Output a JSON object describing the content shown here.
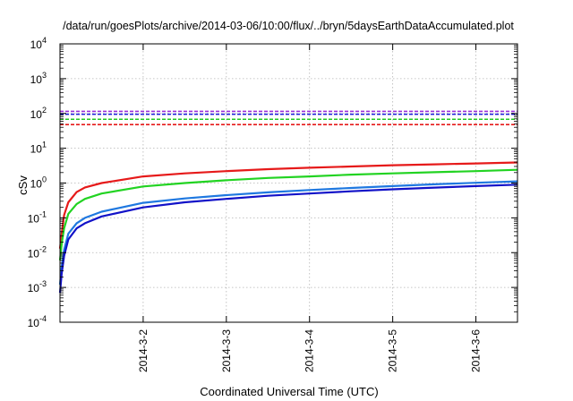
{
  "chart_data": {
    "type": "line",
    "title": "/data/run/goesPlots/archive/2014-03-06/10:00/flux/../bryn/5daysEarthDataAccumulated.plot",
    "xlabel": "Coordinated Universal Time (UTC)",
    "ylabel": "cSv",
    "yscale": "log",
    "ylim": [
      0.0001,
      10000
    ],
    "xlim": [
      0,
      5.5
    ],
    "grid": true,
    "legend": "none",
    "y_ticks": [
      {
        "value": 0.0001,
        "base": "10",
        "exp": "-4"
      },
      {
        "value": 0.001,
        "base": "10",
        "exp": "-3"
      },
      {
        "value": 0.01,
        "base": "10",
        "exp": "-2"
      },
      {
        "value": 0.1,
        "base": "10",
        "exp": "-1"
      },
      {
        "value": 1,
        "base": "10",
        "exp": "0"
      },
      {
        "value": 10,
        "base": "10",
        "exp": "1"
      },
      {
        "value": 100,
        "base": "10",
        "exp": "2"
      },
      {
        "value": 1000,
        "base": "10",
        "exp": "3"
      },
      {
        "value": 10000,
        "base": "10",
        "exp": "4"
      }
    ],
    "x_ticks": [
      {
        "value": 1,
        "label": "2014-3-2"
      },
      {
        "value": 2,
        "label": "2014-3-3"
      },
      {
        "value": 3,
        "label": "2014-3-4"
      },
      {
        "value": 4,
        "label": "2014-3-5"
      },
      {
        "value": 5,
        "label": "2014-3-6"
      }
    ],
    "thresholds": [
      {
        "value": 115,
        "color": "#9b30d9"
      },
      {
        "value": 95,
        "color": "#1a1ad8"
      },
      {
        "value": 68,
        "color": "#22c822"
      },
      {
        "value": 48,
        "color": "#e61a1a"
      }
    ],
    "series": [
      {
        "color": "#e61a1a",
        "x": [
          0.0,
          0.02,
          0.05,
          0.1,
          0.2,
          0.3,
          0.5,
          1.0,
          1.5,
          2.0,
          2.5,
          3.0,
          3.5,
          4.0,
          4.5,
          5.0,
          5.5
        ],
        "y": [
          0.013,
          0.035,
          0.12,
          0.28,
          0.55,
          0.75,
          1.0,
          1.55,
          1.9,
          2.2,
          2.5,
          2.75,
          3.0,
          3.25,
          3.45,
          3.65,
          3.9
        ]
      },
      {
        "color": "#22d322",
        "x": [
          0.0,
          0.02,
          0.05,
          0.1,
          0.2,
          0.3,
          0.5,
          1.0,
          1.5,
          2.0,
          2.5,
          3.0,
          3.5,
          4.0,
          4.5,
          5.0,
          5.5
        ],
        "y": [
          0.006,
          0.018,
          0.05,
          0.13,
          0.25,
          0.35,
          0.5,
          0.8,
          1.0,
          1.2,
          1.4,
          1.55,
          1.75,
          1.9,
          2.05,
          2.2,
          2.4
        ]
      },
      {
        "color": "#1f78e0",
        "x": [
          0.0,
          0.02,
          0.05,
          0.1,
          0.2,
          0.3,
          0.5,
          1.0,
          1.5,
          2.0,
          2.5,
          3.0,
          3.5,
          4.0,
          4.5,
          5.0,
          5.5
        ],
        "y": [
          0.0012,
          0.004,
          0.012,
          0.035,
          0.07,
          0.1,
          0.15,
          0.27,
          0.36,
          0.45,
          0.54,
          0.63,
          0.72,
          0.82,
          0.92,
          1.02,
          1.12
        ]
      },
      {
        "color": "#1212c8",
        "x": [
          0.0,
          0.02,
          0.05,
          0.1,
          0.2,
          0.3,
          0.5,
          1.0,
          1.5,
          2.0,
          2.5,
          3.0,
          3.5,
          4.0,
          4.5,
          5.0,
          5.5
        ],
        "y": [
          0.0007,
          0.0025,
          0.008,
          0.024,
          0.05,
          0.07,
          0.11,
          0.2,
          0.28,
          0.35,
          0.43,
          0.5,
          0.58,
          0.66,
          0.74,
          0.82,
          0.9
        ]
      }
    ]
  }
}
